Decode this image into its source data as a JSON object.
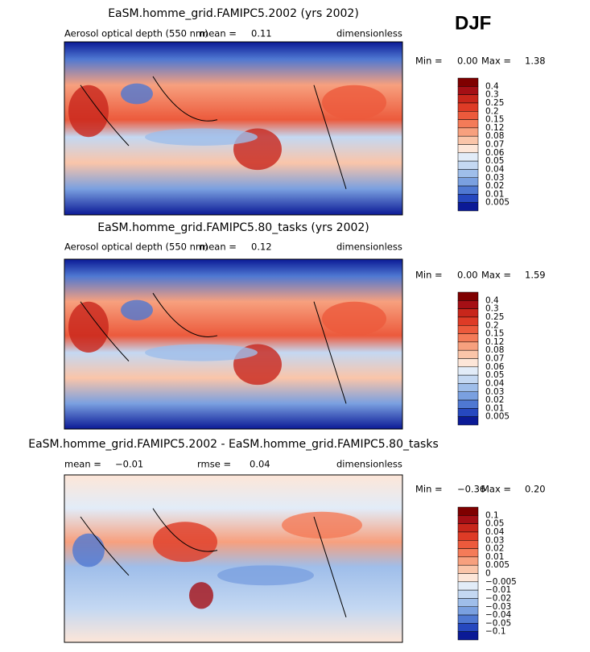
{
  "season": "DJF",
  "panels": [
    {
      "title": "EaSM.homme_grid.FAMIPC5.2002 (yrs 2002)",
      "variable": "Aerosol optical depth (550 nm)",
      "stats": [
        {
          "label": "mean =",
          "value": "0.11"
        }
      ],
      "units": "dimensionless",
      "min_label": "Min =",
      "min": "0.00",
      "max_label": "Max =",
      "max": "1.38",
      "levels": [
        "0.4",
        "0.3",
        "0.25",
        "0.2",
        "0.15",
        "0.12",
        "0.08",
        "0.07",
        "0.06",
        "0.05",
        "0.04",
        "0.03",
        "0.02",
        "0.01",
        "0.005"
      ],
      "colors": [
        "#7f0000",
        "#a50f15",
        "#c8261b",
        "#de3b26",
        "#ec5a3c",
        "#f47b58",
        "#f7a07e",
        "#fac5a9",
        "#fde6d8",
        "#e2ecf8",
        "#c4d8f2",
        "#9fbeea",
        "#7aa0e0",
        "#4f78d2",
        "#2648bf",
        "#0b1a96"
      ]
    },
    {
      "title": "EaSM.homme_grid.FAMIPC5.80_tasks (yrs 2002)",
      "variable": "Aerosol optical depth (550 nm)",
      "stats": [
        {
          "label": "mean =",
          "value": "0.12"
        }
      ],
      "units": "dimensionless",
      "min_label": "Min =",
      "min": "0.00",
      "max_label": "Max =",
      "max": "1.59",
      "levels": [
        "0.4",
        "0.3",
        "0.25",
        "0.2",
        "0.15",
        "0.12",
        "0.08",
        "0.07",
        "0.06",
        "0.05",
        "0.04",
        "0.03",
        "0.02",
        "0.01",
        "0.005"
      ],
      "colors": [
        "#7f0000",
        "#a50f15",
        "#c8261b",
        "#de3b26",
        "#ec5a3c",
        "#f47b58",
        "#f7a07e",
        "#fac5a9",
        "#fde6d8",
        "#e2ecf8",
        "#c4d8f2",
        "#9fbeea",
        "#7aa0e0",
        "#4f78d2",
        "#2648bf",
        "#0b1a96"
      ]
    },
    {
      "title": "EaSM.homme_grid.FAMIPC5.2002 - EaSM.homme_grid.FAMIPC5.80_tasks",
      "stats": [
        {
          "label": "mean =",
          "value": "−0.01"
        },
        {
          "label": "rmse =",
          "value": "0.04"
        }
      ],
      "units": "dimensionless",
      "min_label": "Min =",
      "min": "−0.36",
      "max_label": "Max =",
      "max": "0.20",
      "levels": [
        "0.1",
        "0.05",
        "0.04",
        "0.03",
        "0.02",
        "0.01",
        "0.005",
        "0",
        "−0.005",
        "−0.01",
        "−0.02",
        "−0.03",
        "−0.04",
        "−0.05",
        "−0.1"
      ],
      "colors": [
        "#7f0000",
        "#a50f15",
        "#c8261b",
        "#de3b26",
        "#ec5a3c",
        "#f47b58",
        "#f7a07e",
        "#fac5a9",
        "#fde6d8",
        "#e2ecf8",
        "#c4d8f2",
        "#9fbeea",
        "#7aa0e0",
        "#4f78d2",
        "#2648bf",
        "#0b1a96"
      ]
    }
  ]
}
